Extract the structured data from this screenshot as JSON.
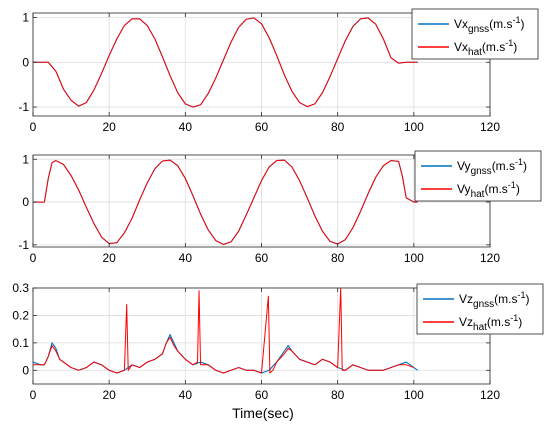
{
  "figure": {
    "xlabel": "Time(sec)"
  },
  "colors": {
    "gnss": "#0072BD",
    "hat": "#FF0000",
    "grid": "#DCDCDC",
    "axis": "#262626"
  },
  "chart_data": [
    {
      "type": "line",
      "title": "",
      "xlabel": "",
      "ylabel": "",
      "xlim": [
        0,
        120
      ],
      "ylim": [
        -1.2,
        1.1
      ],
      "xticks": [
        0,
        20,
        40,
        60,
        80,
        100,
        120
      ],
      "yticks": [
        -1,
        0,
        1
      ],
      "grid": true,
      "legend_position": "top-right",
      "series": [
        {
          "legend_base": "Vx",
          "legend_sub": "gnss",
          "legend_unit": "(m.s",
          "legend_exp": "-1",
          "legend_close": ")",
          "color": "#0072BD",
          "x": [
            0,
            2,
            4,
            6,
            8,
            10,
            12,
            14,
            16,
            18,
            20,
            22,
            24,
            26,
            28,
            30,
            32,
            34,
            36,
            38,
            40,
            42,
            44,
            46,
            48,
            50,
            52,
            54,
            56,
            58,
            60,
            62,
            64,
            66,
            68,
            70,
            72,
            74,
            76,
            78,
            80,
            82,
            84,
            86,
            88,
            90,
            92,
            94,
            96,
            98,
            100,
            101
          ],
          "y": [
            0,
            0,
            0,
            -0.2,
            -0.6,
            -0.85,
            -0.98,
            -0.9,
            -0.62,
            -0.25,
            0.15,
            0.52,
            0.82,
            0.97,
            0.97,
            0.82,
            0.52,
            0.12,
            -0.3,
            -0.68,
            -0.93,
            -1.0,
            -0.95,
            -0.7,
            -0.35,
            0.05,
            0.45,
            0.78,
            0.96,
            0.99,
            0.86,
            0.55,
            0.15,
            -0.28,
            -0.65,
            -0.9,
            -0.99,
            -0.93,
            -0.68,
            -0.32,
            0.08,
            0.48,
            0.8,
            0.97,
            0.99,
            0.85,
            0.52,
            0.1,
            -0.02,
            0,
            0,
            0
          ]
        },
        {
          "legend_base": "Vx",
          "legend_sub": "hat",
          "legend_unit": "(m.s",
          "legend_exp": "-1",
          "legend_close": ")",
          "color": "#FF0000",
          "x": [
            0,
            2,
            4,
            6,
            8,
            10,
            12,
            14,
            16,
            18,
            20,
            22,
            24,
            26,
            28,
            30,
            32,
            34,
            36,
            38,
            40,
            42,
            44,
            46,
            48,
            50,
            52,
            54,
            56,
            58,
            60,
            62,
            64,
            66,
            68,
            70,
            72,
            74,
            76,
            78,
            80,
            82,
            84,
            86,
            88,
            90,
            92,
            94,
            96,
            98,
            100,
            101
          ],
          "y": [
            0,
            0,
            0,
            -0.2,
            -0.6,
            -0.85,
            -0.98,
            -0.9,
            -0.62,
            -0.25,
            0.15,
            0.52,
            0.82,
            0.97,
            0.97,
            0.82,
            0.52,
            0.12,
            -0.3,
            -0.68,
            -0.93,
            -1.0,
            -0.95,
            -0.7,
            -0.35,
            0.05,
            0.45,
            0.78,
            0.96,
            0.99,
            0.86,
            0.55,
            0.15,
            -0.28,
            -0.65,
            -0.9,
            -0.99,
            -0.93,
            -0.68,
            -0.32,
            0.08,
            0.48,
            0.8,
            0.97,
            0.99,
            0.85,
            0.52,
            0.1,
            -0.02,
            0,
            0,
            0
          ]
        }
      ]
    },
    {
      "type": "line",
      "title": "",
      "xlabel": "",
      "ylabel": "",
      "xlim": [
        0,
        120
      ],
      "ylim": [
        -1.05,
        1.1
      ],
      "xticks": [
        0,
        20,
        40,
        60,
        80,
        100,
        120
      ],
      "yticks": [
        -1,
        0,
        1
      ],
      "grid": true,
      "legend_position": "top-right",
      "series": [
        {
          "legend_base": "Vy",
          "legend_sub": "gnss",
          "legend_unit": "(m.s",
          "legend_exp": "-1",
          "legend_close": ")",
          "color": "#0072BD",
          "x": [
            0,
            2,
            3,
            4,
            5,
            6,
            8,
            10,
            12,
            14,
            16,
            18,
            20,
            22,
            24,
            26,
            28,
            30,
            32,
            34,
            36,
            38,
            40,
            42,
            44,
            46,
            48,
            50,
            52,
            54,
            56,
            58,
            60,
            62,
            64,
            66,
            68,
            70,
            72,
            74,
            76,
            78,
            80,
            82,
            84,
            86,
            88,
            90,
            92,
            94,
            96,
            97,
            98,
            100,
            101
          ],
          "y": [
            0,
            0,
            0,
            0.55,
            0.92,
            0.97,
            0.88,
            0.62,
            0.28,
            -0.12,
            -0.5,
            -0.82,
            -0.97,
            -0.95,
            -0.72,
            -0.38,
            0.05,
            0.45,
            0.78,
            0.96,
            0.98,
            0.85,
            0.55,
            0.15,
            -0.28,
            -0.65,
            -0.9,
            -0.99,
            -0.93,
            -0.68,
            -0.3,
            0.1,
            0.5,
            0.82,
            0.97,
            0.98,
            0.82,
            0.5,
            0.1,
            -0.32,
            -0.68,
            -0.92,
            -0.98,
            -0.88,
            -0.6,
            -0.22,
            0.2,
            0.58,
            0.85,
            0.97,
            0.95,
            0.6,
            0.1,
            0,
            0
          ]
        },
        {
          "legend_base": "Vy",
          "legend_sub": "hat",
          "legend_unit": "(m.s",
          "legend_exp": "-1",
          "legend_close": ")",
          "color": "#FF0000",
          "x": [
            0,
            2,
            3,
            4,
            5,
            6,
            8,
            10,
            12,
            14,
            16,
            18,
            20,
            22,
            24,
            26,
            28,
            30,
            32,
            34,
            36,
            38,
            40,
            42,
            44,
            46,
            48,
            50,
            52,
            54,
            56,
            58,
            60,
            62,
            64,
            66,
            68,
            70,
            72,
            74,
            76,
            78,
            80,
            82,
            84,
            86,
            88,
            90,
            92,
            94,
            96,
            97,
            98,
            100,
            101
          ],
          "y": [
            0,
            0,
            0,
            0.55,
            0.92,
            0.97,
            0.88,
            0.62,
            0.28,
            -0.12,
            -0.5,
            -0.82,
            -0.97,
            -0.95,
            -0.72,
            -0.38,
            0.05,
            0.45,
            0.78,
            0.96,
            0.98,
            0.85,
            0.55,
            0.15,
            -0.28,
            -0.65,
            -0.9,
            -0.99,
            -0.93,
            -0.68,
            -0.3,
            0.1,
            0.5,
            0.82,
            0.97,
            0.98,
            0.82,
            0.5,
            0.1,
            -0.32,
            -0.68,
            -0.92,
            -0.98,
            -0.88,
            -0.6,
            -0.22,
            0.2,
            0.58,
            0.85,
            0.97,
            0.95,
            0.6,
            0.1,
            0,
            0
          ]
        }
      ]
    },
    {
      "type": "line",
      "title": "",
      "xlabel": "Time(sec)",
      "ylabel": "",
      "xlim": [
        0,
        120
      ],
      "ylim": [
        -0.05,
        0.3
      ],
      "xticks": [
        0,
        20,
        40,
        60,
        80,
        100,
        120
      ],
      "yticks": [
        0,
        0.1,
        0.2,
        0.3
      ],
      "grid": true,
      "legend_position": "top-right",
      "series": [
        {
          "legend_base": "Vz",
          "legend_sub": "gnss",
          "legend_unit": "(m.s",
          "legend_exp": "-1",
          "legend_close": ")",
          "color": "#0072BD",
          "x": [
            0,
            2,
            3,
            4,
            5,
            6,
            7,
            8,
            10,
            12,
            14,
            16,
            18,
            20,
            22,
            24,
            26,
            28,
            30,
            32,
            34,
            35,
            36,
            37,
            38,
            40,
            42,
            44,
            46,
            48,
            50,
            52,
            54,
            56,
            58,
            60,
            62,
            64,
            66,
            67,
            68,
            70,
            72,
            74,
            76,
            78,
            80,
            82,
            84,
            86,
            88,
            90,
            92,
            94,
            96,
            98,
            100,
            101
          ],
          "y": [
            0.03,
            0.02,
            0.02,
            0.05,
            0.1,
            0.08,
            0.04,
            0.03,
            0.01,
            0.0,
            0.01,
            0.03,
            0.02,
            0.0,
            -0.01,
            0.0,
            0.02,
            0.01,
            0.03,
            0.04,
            0.06,
            0.1,
            0.13,
            0.1,
            0.07,
            0.04,
            0.02,
            0.03,
            0.02,
            0.0,
            -0.01,
            0.0,
            0.01,
            0.0,
            0.0,
            -0.01,
            0.0,
            0.03,
            0.07,
            0.09,
            0.07,
            0.04,
            0.03,
            0.02,
            0.04,
            0.03,
            0.01,
            0.0,
            0.02,
            0.01,
            0.0,
            0.0,
            0.0,
            0.01,
            0.02,
            0.03,
            0.01,
            0.0
          ]
        },
        {
          "legend_base": "Vz",
          "legend_sub": "hat",
          "legend_unit": "(m.s",
          "legend_exp": "-1",
          "legend_close": ")",
          "color": "#FF0000",
          "x": [
            0,
            2,
            3,
            4,
            5,
            6,
            7,
            8,
            10,
            12,
            14,
            16,
            18,
            20,
            22,
            24,
            24.6,
            25,
            26,
            28,
            30,
            32,
            34,
            35,
            36,
            37,
            38,
            40,
            42,
            43.2,
            43.6,
            44,
            46,
            48,
            50,
            52,
            54,
            56,
            58,
            60,
            61.8,
            62.2,
            63,
            64,
            66,
            67,
            68,
            70,
            72,
            74,
            76,
            78,
            80,
            80.8,
            81.2,
            82,
            84,
            86,
            88,
            90,
            92,
            94,
            96,
            98,
            100
          ],
          "y": [
            0.02,
            0.02,
            0.02,
            0.05,
            0.09,
            0.07,
            0.04,
            0.03,
            0.01,
            0.0,
            0.01,
            0.03,
            0.02,
            0.0,
            -0.01,
            0.0,
            0.24,
            0.0,
            0.02,
            0.01,
            0.03,
            0.04,
            0.06,
            0.1,
            0.12,
            0.09,
            0.07,
            0.04,
            0.02,
            0.03,
            0.29,
            0.02,
            0.02,
            0.0,
            -0.01,
            0.0,
            0.01,
            0.0,
            0.0,
            -0.01,
            0.27,
            -0.01,
            0.0,
            0.03,
            0.06,
            0.08,
            0.07,
            0.04,
            0.03,
            0.02,
            0.04,
            0.03,
            0.01,
            0.3,
            0.0,
            0.0,
            0.02,
            0.01,
            0.0,
            0.0,
            0.0,
            0.01,
            0.02,
            0.02,
            0.01
          ]
        }
      ]
    }
  ]
}
